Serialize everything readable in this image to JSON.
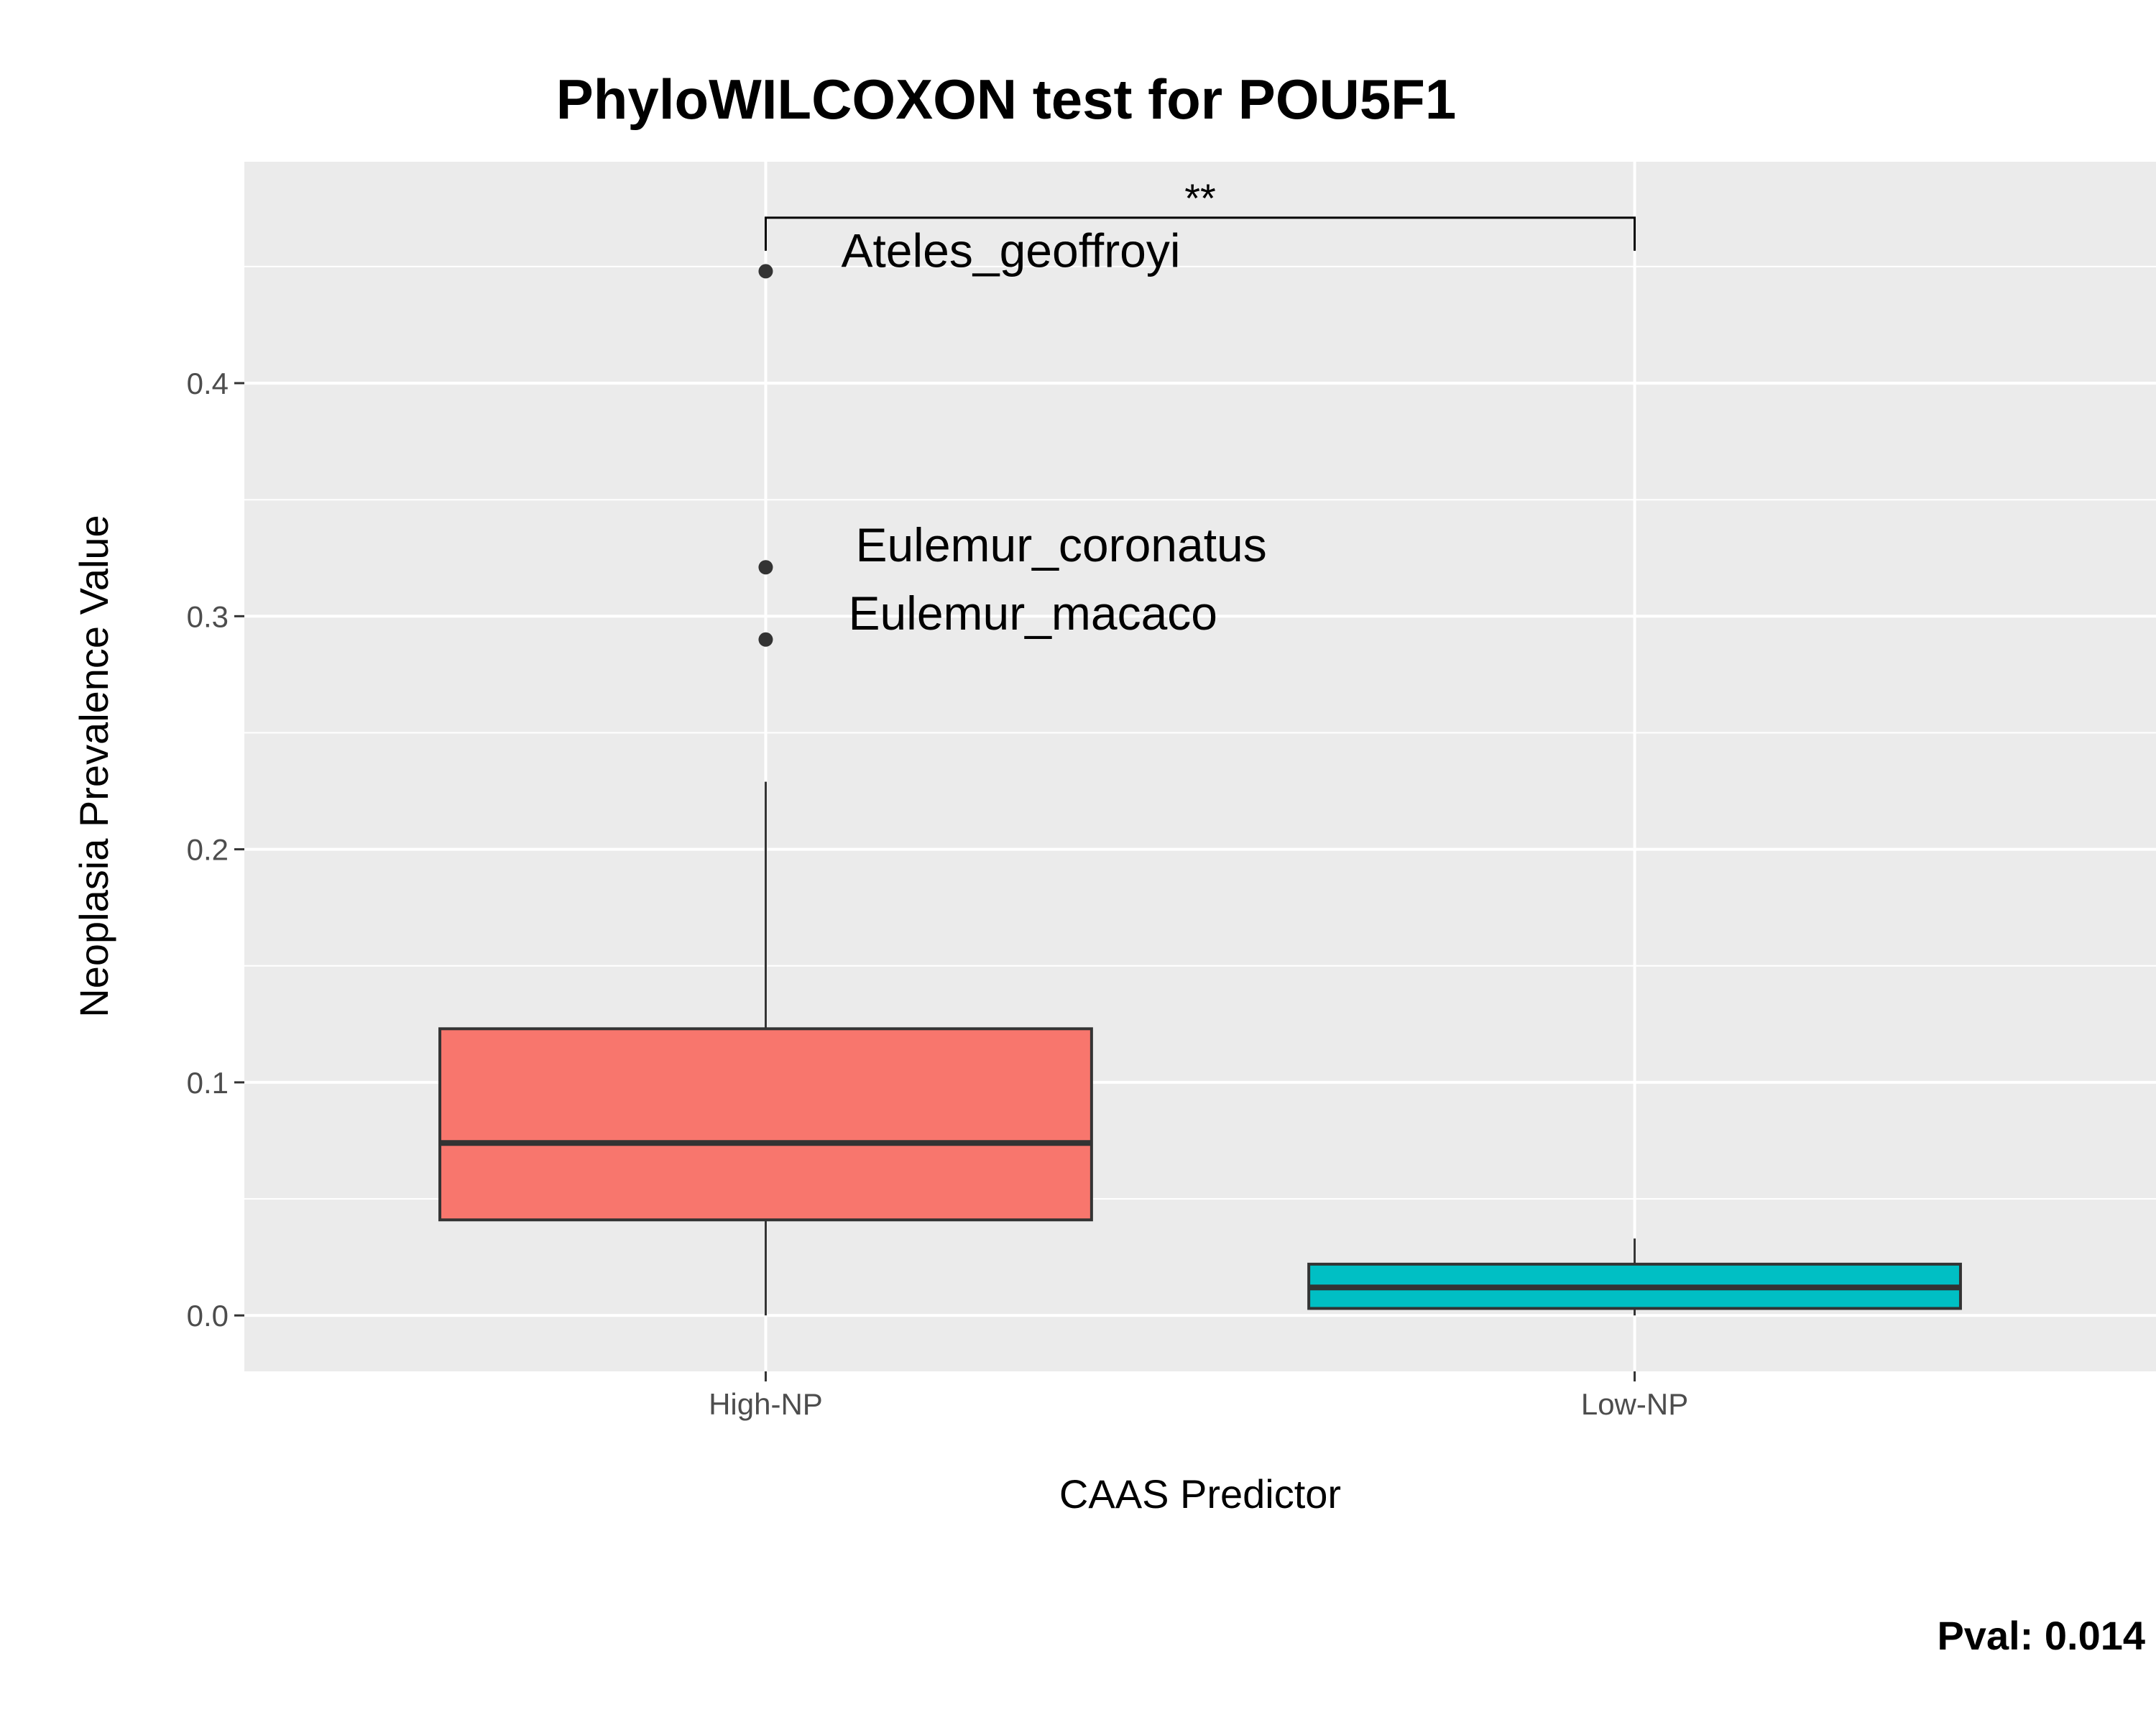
{
  "chart_data": {
    "type": "box",
    "title": "PhyloWILCOXON test for POU5F1",
    "xlabel": "CAAS Predictor",
    "ylabel": "Neoplasia Prevalence Value",
    "ylim": [
      -0.024,
      0.495
    ],
    "yticks": [
      0.0,
      0.1,
      0.2,
      0.3,
      0.4
    ],
    "ytick_labels": [
      "0.0",
      "0.1",
      "0.2",
      "0.3",
      "0.4"
    ],
    "grid": true,
    "categories": [
      "High-NP",
      "Low-NP"
    ],
    "boxes": [
      {
        "category": "High-NP",
        "color": "#F8766D",
        "whisker_low": 0.0,
        "q1": 0.041,
        "median": 0.074,
        "q3": 0.123,
        "whisker_high": 0.229,
        "outliers": [
          {
            "value": 0.448,
            "label": "Ateles_geoffroyi"
          },
          {
            "value": 0.321,
            "label": "Eulemur_coronatus"
          },
          {
            "value": 0.29,
            "label": "Eulemur_macaco"
          }
        ]
      },
      {
        "category": "Low-NP",
        "color": "#00BFC4",
        "whisker_low": 0.0,
        "q1": 0.003,
        "median": 0.012,
        "q3": 0.022,
        "whisker_high": 0.033,
        "outliers": []
      }
    ],
    "significance": {
      "from": "High-NP",
      "to": "Low-NP",
      "y": 0.471,
      "label": "**"
    },
    "annotation": "Pval:  0.014"
  }
}
